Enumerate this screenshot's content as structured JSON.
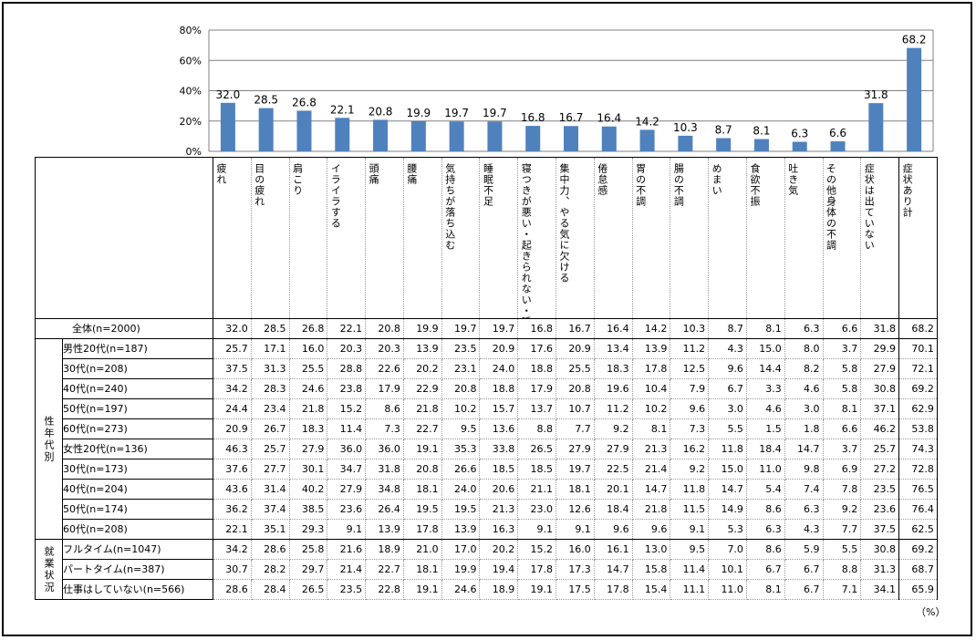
{
  "chart_data": {
    "type": "bar",
    "ylim": [
      0,
      80
    ],
    "yticks": [
      "0%",
      "20%",
      "40%",
      "60%",
      "80%"
    ],
    "ytick_values": [
      0,
      20,
      40,
      60,
      80
    ],
    "bar_color": "#4f81bd",
    "categories": [
      "疲れ",
      "目の疲れ",
      "肩こり",
      "イライラする",
      "頭痛",
      "腰痛",
      "気持ちが落ち込む",
      "睡眠不足",
      "寝つきが悪い・起きられない・睡眠障害",
      "集中力、やる気に欠ける",
      "倦怠感",
      "胃の不調",
      "腸の不調",
      "めまい",
      "食欲不振",
      "吐き気",
      "その他身体の不調",
      "症状は出ていない",
      "症状あり計"
    ],
    "values": [
      32.0,
      28.5,
      26.8,
      22.1,
      20.8,
      19.9,
      19.7,
      19.7,
      16.8,
      16.7,
      16.4,
      14.2,
      10.3,
      8.7,
      8.1,
      6.3,
      6.6,
      31.8,
      68.2
    ],
    "value_labels": [
      "32.0",
      "28.5",
      "26.8",
      "22.1",
      "20.8",
      "19.9",
      "19.7",
      "19.7",
      "16.8",
      "16.7",
      "16.4",
      "14.2",
      "10.3",
      "8.7",
      "8.1",
      "6.3",
      "6.6",
      "31.8",
      "68.2"
    ]
  },
  "table": {
    "groups": [
      {
        "label": "",
        "rows": [
          {
            "label": "全体(n=2000)",
            "values": [
              "32.0",
              "28.5",
              "26.8",
              "22.1",
              "20.8",
              "19.9",
              "19.7",
              "19.7",
              "16.8",
              "16.7",
              "16.4",
              "14.2",
              "10.3",
              "8.7",
              "8.1",
              "6.3",
              "6.6",
              "31.8",
              "68.2"
            ]
          }
        ]
      },
      {
        "label": "性年代別",
        "rows": [
          {
            "label": "男性20代(n=187)",
            "values": [
              "25.7",
              "17.1",
              "16.0",
              "20.3",
              "20.3",
              "13.9",
              "23.5",
              "20.9",
              "17.6",
              "20.9",
              "13.4",
              "13.9",
              "11.2",
              "4.3",
              "15.0",
              "8.0",
              "3.7",
              "29.9",
              "70.1"
            ]
          },
          {
            "label": "30代(n=208)",
            "values": [
              "37.5",
              "31.3",
              "25.5",
              "28.8",
              "22.6",
              "20.2",
              "23.1",
              "24.0",
              "18.8",
              "25.5",
              "18.3",
              "17.8",
              "12.5",
              "9.6",
              "14.4",
              "8.2",
              "5.8",
              "27.9",
              "72.1"
            ]
          },
          {
            "label": "40代(n=240)",
            "values": [
              "34.2",
              "28.3",
              "24.6",
              "23.8",
              "17.9",
              "22.9",
              "20.8",
              "18.8",
              "17.9",
              "20.8",
              "19.6",
              "10.4",
              "7.9",
              "6.7",
              "3.3",
              "4.6",
              "5.8",
              "30.8",
              "69.2"
            ]
          },
          {
            "label": "50代(n=197)",
            "values": [
              "24.4",
              "23.4",
              "21.8",
              "15.2",
              "8.6",
              "21.8",
              "10.2",
              "15.7",
              "13.7",
              "10.7",
              "11.2",
              "10.2",
              "9.6",
              "3.0",
              "4.6",
              "3.0",
              "8.1",
              "37.1",
              "62.9"
            ]
          },
          {
            "label": "60代(n=273)",
            "values": [
              "20.9",
              "26.7",
              "18.3",
              "11.4",
              "7.3",
              "22.7",
              "9.5",
              "13.6",
              "8.8",
              "7.7",
              "9.2",
              "8.1",
              "7.3",
              "5.5",
              "1.5",
              "1.8",
              "6.6",
              "46.2",
              "53.8"
            ]
          },
          {
            "label": "女性20代(n=136)",
            "values": [
              "46.3",
              "25.7",
              "27.9",
              "36.0",
              "36.0",
              "19.1",
              "35.3",
              "33.8",
              "26.5",
              "27.9",
              "27.9",
              "21.3",
              "16.2",
              "11.8",
              "18.4",
              "14.7",
              "3.7",
              "25.7",
              "74.3"
            ]
          },
          {
            "label": "30代(n=173)",
            "values": [
              "37.6",
              "27.7",
              "30.1",
              "34.7",
              "31.8",
              "20.8",
              "26.6",
              "18.5",
              "18.5",
              "19.7",
              "22.5",
              "21.4",
              "9.2",
              "15.0",
              "11.0",
              "9.8",
              "6.9",
              "27.2",
              "72.8"
            ]
          },
          {
            "label": "40代(n=204)",
            "values": [
              "43.6",
              "31.4",
              "40.2",
              "27.9",
              "34.8",
              "18.1",
              "24.0",
              "20.6",
              "21.1",
              "18.1",
              "20.1",
              "14.7",
              "11.8",
              "14.7",
              "5.4",
              "7.4",
              "7.8",
              "23.5",
              "76.5"
            ]
          },
          {
            "label": "50代(n=174)",
            "values": [
              "36.2",
              "37.4",
              "38.5",
              "23.6",
              "26.4",
              "19.5",
              "19.5",
              "21.3",
              "23.0",
              "12.6",
              "18.4",
              "21.8",
              "11.5",
              "14.9",
              "8.6",
              "6.3",
              "9.2",
              "23.6",
              "76.4"
            ]
          },
          {
            "label": "60代(n=208)",
            "values": [
              "22.1",
              "35.1",
              "29.3",
              "9.1",
              "13.9",
              "17.8",
              "13.9",
              "16.3",
              "9.1",
              "9.1",
              "9.6",
              "9.6",
              "9.1",
              "5.3",
              "6.3",
              "4.3",
              "7.7",
              "37.5",
              "62.5"
            ]
          }
        ]
      },
      {
        "label": "就業状況",
        "rows": [
          {
            "label": "フルタイム(n=1047)",
            "values": [
              "34.2",
              "28.6",
              "25.8",
              "21.6",
              "18.9",
              "21.0",
              "17.0",
              "20.2",
              "15.2",
              "16.0",
              "16.1",
              "13.0",
              "9.5",
              "7.0",
              "8.6",
              "5.9",
              "5.5",
              "30.8",
              "69.2"
            ]
          },
          {
            "label": "パートタイム(n=387)",
            "values": [
              "30.7",
              "28.2",
              "29.7",
              "21.4",
              "22.7",
              "18.1",
              "19.9",
              "19.4",
              "17.8",
              "17.3",
              "14.7",
              "15.8",
              "11.4",
              "10.1",
              "6.7",
              "6.7",
              "8.8",
              "31.3",
              "68.7"
            ]
          },
          {
            "label": "仕事はしていない(n=566)",
            "values": [
              "28.6",
              "28.4",
              "26.5",
              "23.5",
              "22.8",
              "19.1",
              "24.6",
              "18.9",
              "19.1",
              "17.5",
              "17.8",
              "15.4",
              "11.1",
              "11.0",
              "8.1",
              "6.7",
              "7.1",
              "34.1",
              "65.9"
            ]
          }
        ]
      }
    ],
    "unit": "（%）"
  }
}
